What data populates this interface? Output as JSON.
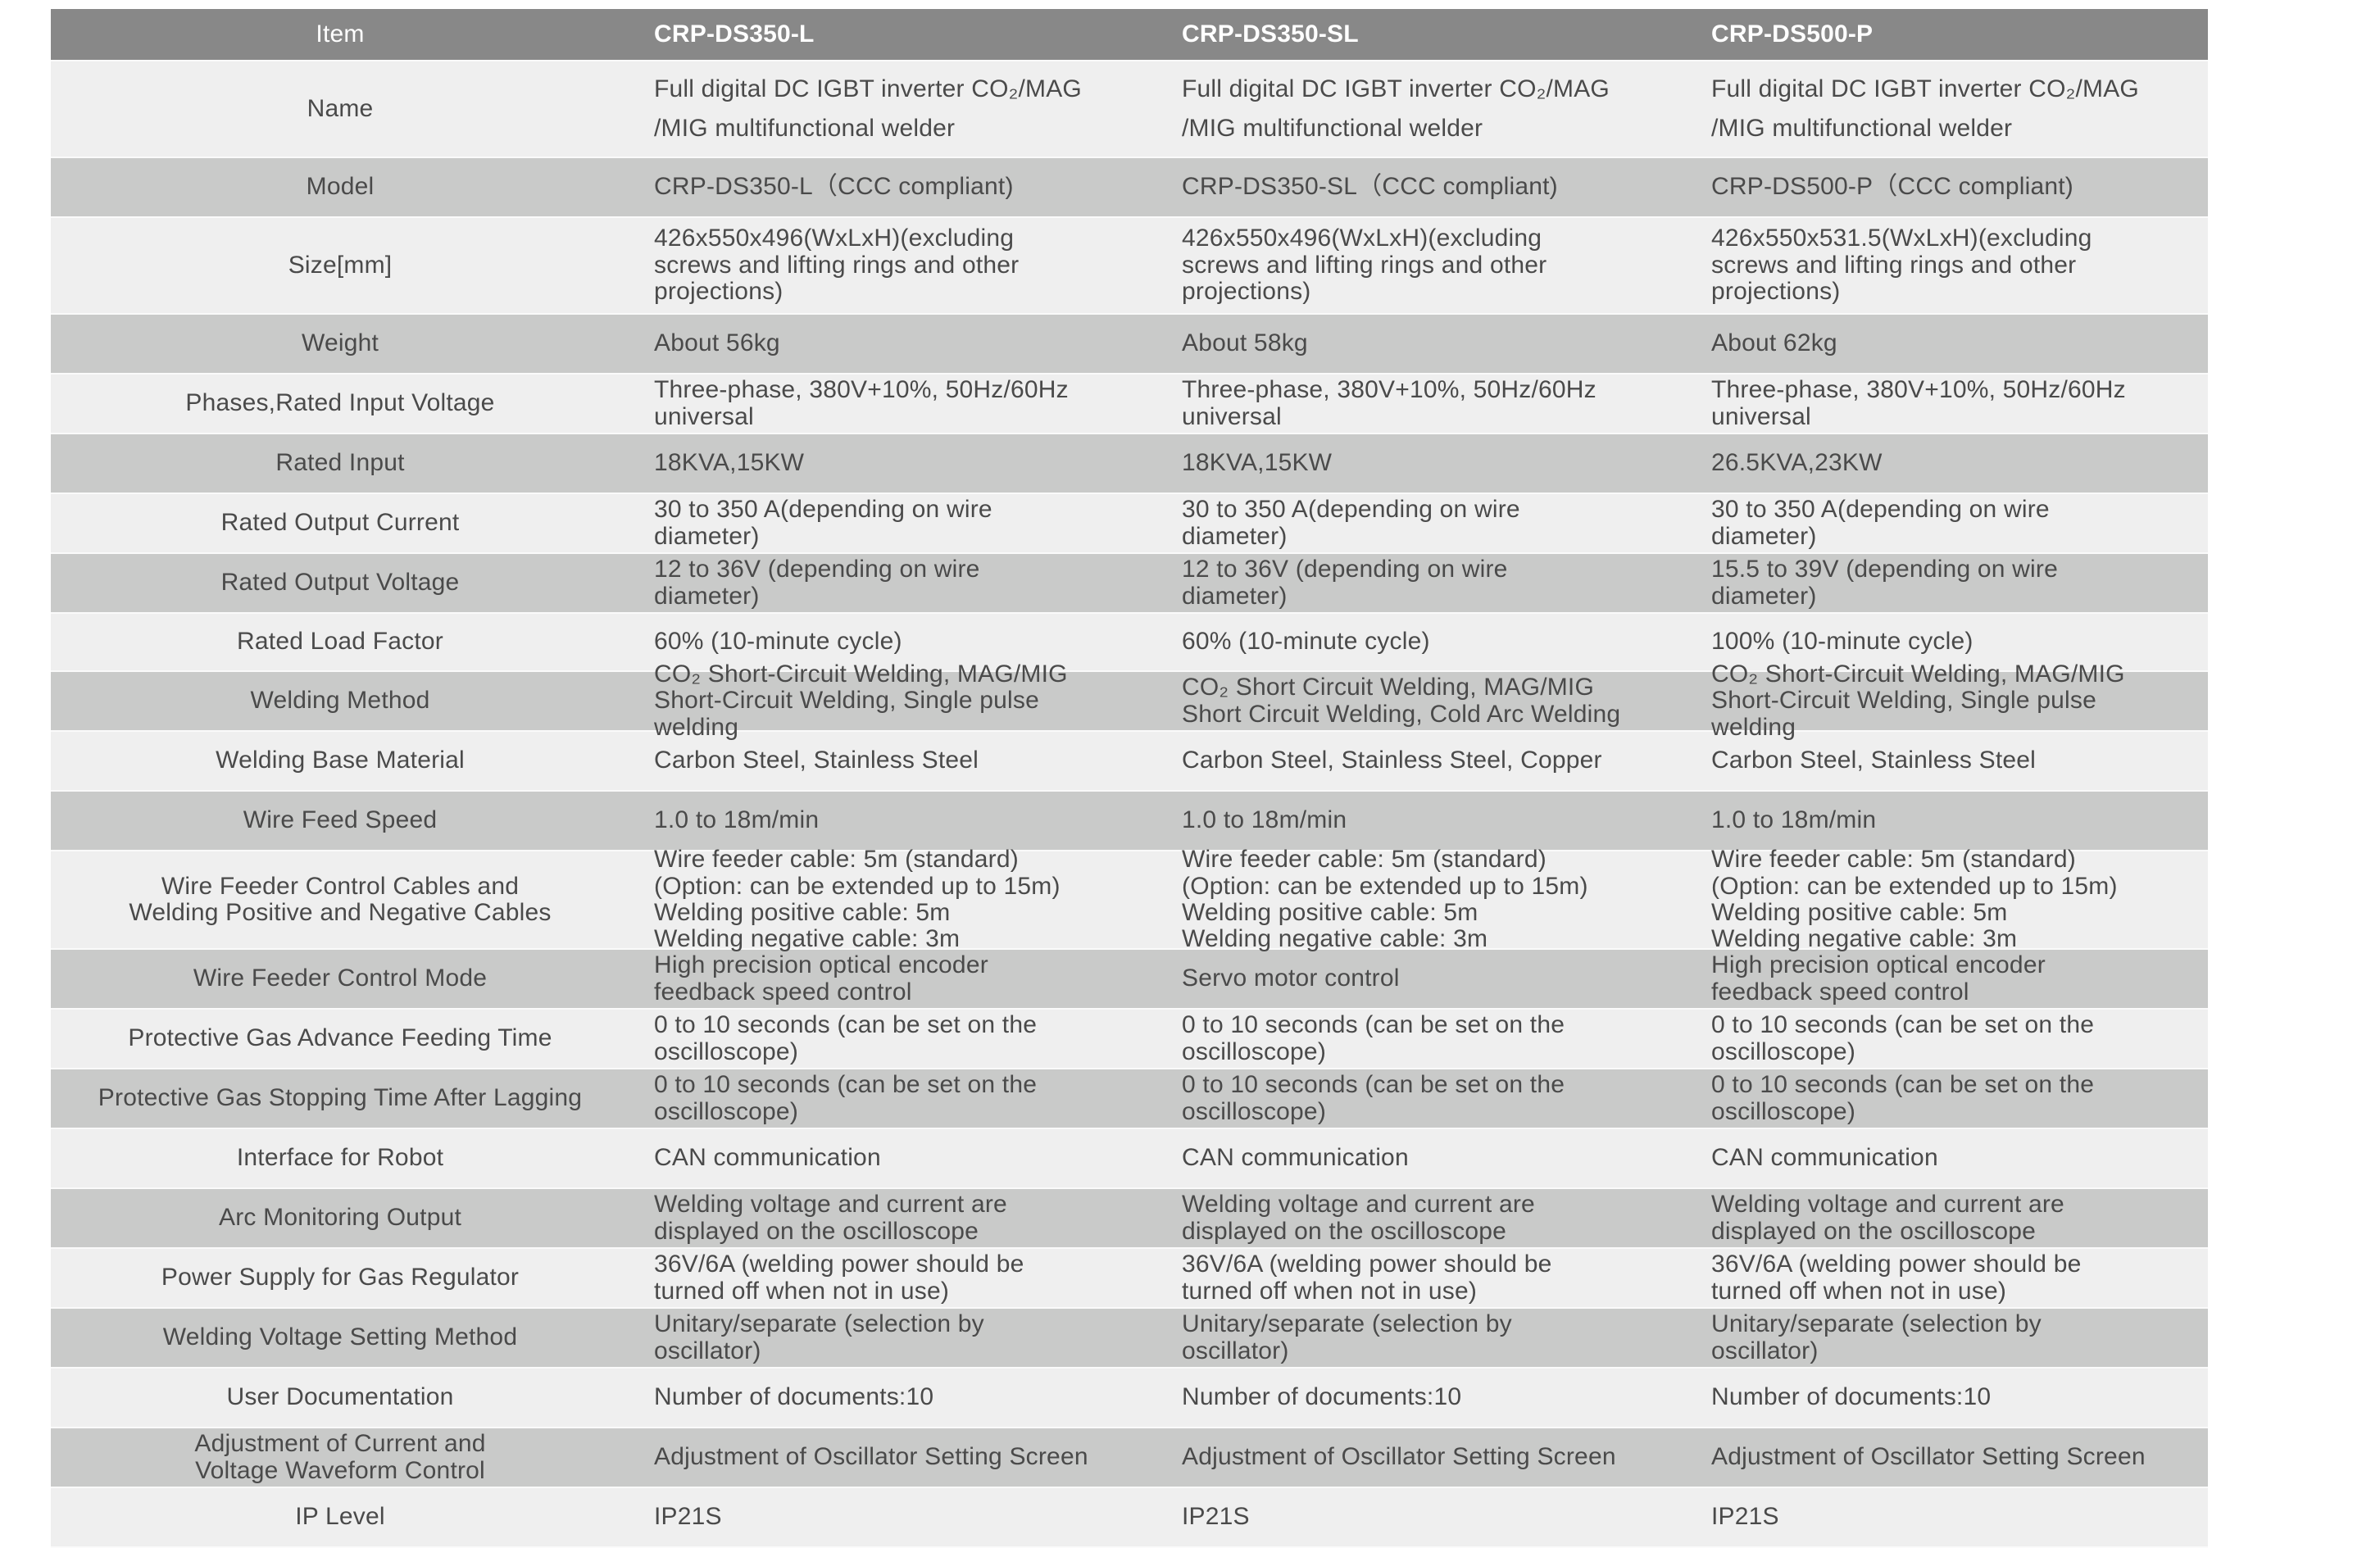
{
  "header": {
    "item": "Item",
    "models": [
      "CRP-DS350-L",
      "CRP-DS350-SL",
      "CRP-DS500-P"
    ]
  },
  "colors": {
    "header_bg": "#888888",
    "row_light": "#efefef",
    "row_dark": "#c9cac9",
    "text": "#4a4a4a"
  },
  "rows": [
    {
      "item": "Name",
      "values": [
        "Full digital DC IGBT inverter CO₂/MAG\n/MIG multifunctional welder",
        "Full digital DC IGBT inverter CO₂/MAG\n/MIG multifunctional welder",
        "Full digital DC IGBT inverter CO₂/MAG\n/MIG multifunctional welder"
      ]
    },
    {
      "item": "Model",
      "values": [
        "CRP-DS350-L（CCC compliant)",
        "CRP-DS350-SL（CCC compliant)",
        "CRP-DS500-P（CCC compliant)"
      ]
    },
    {
      "item": "Size[mm]",
      "values": [
        "426x550x496(WxLxH)(excluding\nscrews and lifting rings and other\nprojections)",
        "426x550x496(WxLxH)(excluding\nscrews and lifting rings and other\nprojections)",
        "426x550x531.5(WxLxH)(excluding\nscrews and lifting rings and other\nprojections)"
      ]
    },
    {
      "item": "Weight",
      "values": [
        "About 56kg",
        "About 58kg",
        "About 62kg"
      ]
    },
    {
      "item": "Phases,Rated Input Voltage",
      "values": [
        "Three-phase, 380V+10%, 50Hz/60Hz\nuniversal",
        "Three-phase, 380V+10%, 50Hz/60Hz\nuniversal",
        "Three-phase, 380V+10%, 50Hz/60Hz\nuniversal"
      ]
    },
    {
      "item": "Rated Input",
      "values": [
        "18KVA,15KW",
        "18KVA,15KW",
        "26.5KVA,23KW"
      ]
    },
    {
      "item": "Rated Output Current",
      "values": [
        "30 to 350 A(depending on wire\ndiameter)",
        "30 to 350 A(depending on wire\ndiameter)",
        "30 to 350 A(depending on wire\ndiameter)"
      ]
    },
    {
      "item": "Rated Output Voltage",
      "values": [
        "12 to 36V (depending on wire\ndiameter)",
        "12 to 36V (depending on wire\ndiameter)",
        "15.5 to 39V (depending on wire\ndiameter)"
      ]
    },
    {
      "item": "Rated Load Factor",
      "values": [
        "60% (10-minute cycle)",
        "60% (10-minute cycle)",
        "100% (10-minute cycle)"
      ]
    },
    {
      "item": "Welding Method",
      "values": [
        "CO₂ Short-Circuit Welding, MAG/MIG\nShort-Circuit Welding, Single pulse\nwelding",
        "CO₂ Short Circuit Welding, MAG/MIG\nShort Circuit Welding, Cold Arc Welding",
        "CO₂ Short-Circuit Welding, MAG/MIG\nShort-Circuit Welding, Single pulse\nwelding"
      ]
    },
    {
      "item": "Welding Base Material",
      "values": [
        "Carbon Steel, Stainless Steel",
        "Carbon Steel, Stainless Steel, Copper",
        "Carbon Steel, Stainless Steel"
      ]
    },
    {
      "item": "Wire Feed Speed",
      "values": [
        "1.0 to 18m/min",
        "1.0 to 18m/min",
        "1.0 to 18m/min"
      ]
    },
    {
      "item": "Wire Feeder Control Cables and\nWelding Positive and Negative Cables",
      "values": [
        "Wire feeder cable: 5m (standard)\n(Option: can be extended up to 15m)\nWelding positive cable: 5m\nWelding negative cable: 3m",
        "Wire feeder cable: 5m (standard)\n(Option: can be extended up to 15m)\nWelding positive cable: 5m\nWelding negative cable: 3m",
        "Wire feeder cable: 5m (standard)\n(Option: can be extended up to 15m)\nWelding positive cable: 5m\nWelding negative cable: 3m"
      ]
    },
    {
      "item": "Wire Feeder Control Mode",
      "values": [
        "High precision optical encoder\nfeedback speed control",
        "Servo motor control",
        "High precision optical encoder\nfeedback speed control"
      ]
    },
    {
      "item": "Protective Gas Advance Feeding Time",
      "values": [
        "0 to 10 seconds (can be set on the\noscilloscope)",
        "0 to 10 seconds (can be set on the\noscilloscope)",
        "0 to 10 seconds (can be set on the\noscilloscope)"
      ]
    },
    {
      "item": "Protective Gas Stopping Time After Lagging",
      "values": [
        "0 to 10 seconds (can be set on the\noscilloscope)",
        "0 to 10 seconds (can be set on the\noscilloscope)",
        "0 to 10 seconds (can be set on the\noscilloscope)"
      ]
    },
    {
      "item": "Interface for Robot",
      "values": [
        "CAN communication",
        "CAN communication",
        "CAN communication"
      ]
    },
    {
      "item": "Arc Monitoring Output",
      "values": [
        "Welding voltage and current are\ndisplayed on the oscilloscope",
        "Welding voltage and current are\ndisplayed on the oscilloscope",
        "Welding voltage and current are\ndisplayed on the oscilloscope"
      ]
    },
    {
      "item": "Power Supply for Gas Regulator",
      "values": [
        "36V/6A (welding power should be\nturned off when not in use)",
        "36V/6A (welding power should be\nturned off when not in use)",
        "36V/6A (welding power should be\nturned off when not in use)"
      ]
    },
    {
      "item": "Welding Voltage Setting Method",
      "values": [
        "Unitary/separate (selection by\noscillator)",
        "Unitary/separate (selection by\noscillator)",
        "Unitary/separate (selection by\noscillator)"
      ]
    },
    {
      "item": "User Documentation",
      "values": [
        "Number of documents:10",
        "Number of documents:10",
        "Number of documents:10"
      ]
    },
    {
      "item": "Adjustment of Current and\nVoltage Waveform Control",
      "values": [
        "Adjustment of Oscillator Setting Screen",
        "Adjustment of Oscillator Setting Screen",
        "Adjustment of Oscillator Setting Screen"
      ]
    },
    {
      "item": "IP Level",
      "values": [
        "IP21S",
        "IP21S",
        "IP21S"
      ]
    }
  ]
}
